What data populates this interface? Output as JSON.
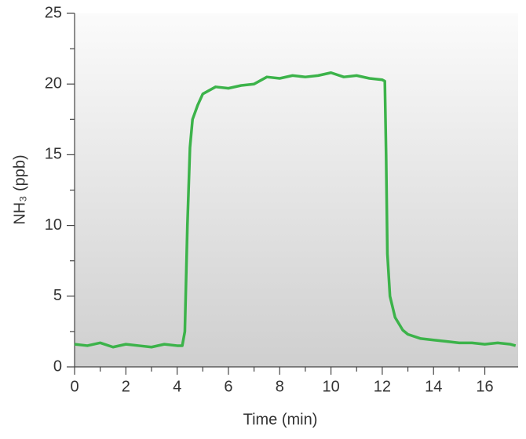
{
  "chart_data": {
    "type": "line",
    "xlabel": "Time (min)",
    "ylabel": "NH₃ (ppb)",
    "x": [
      0,
      0.5,
      1,
      1.5,
      2,
      2.5,
      3,
      3.5,
      4,
      4.2,
      4.3,
      4.4,
      4.5,
      4.6,
      4.8,
      5,
      5.5,
      6,
      6.5,
      7,
      7.5,
      8,
      8.5,
      9,
      9.5,
      10,
      10.5,
      11,
      11.5,
      12,
      12.1,
      12.15,
      12.2,
      12.3,
      12.5,
      12.8,
      13,
      13.5,
      14,
      14.5,
      15,
      15.5,
      16,
      16.5,
      17,
      17.2
    ],
    "series": [
      {
        "name": "NH₃",
        "color": "#3cb34a",
        "values": [
          1.6,
          1.5,
          1.7,
          1.4,
          1.6,
          1.5,
          1.4,
          1.6,
          1.5,
          1.5,
          2.5,
          10,
          15.5,
          17.5,
          18.5,
          19.3,
          19.8,
          19.7,
          19.9,
          20.0,
          20.5,
          20.4,
          20.6,
          20.5,
          20.6,
          20.8,
          20.5,
          20.6,
          20.4,
          20.3,
          20.2,
          15,
          8,
          5,
          3.5,
          2.6,
          2.3,
          2.0,
          1.9,
          1.8,
          1.7,
          1.7,
          1.6,
          1.7,
          1.6,
          1.5
        ]
      }
    ],
    "xlim": [
      0,
      17.3
    ],
    "ylim": [
      0,
      25
    ],
    "xticks": [
      0,
      2,
      4,
      6,
      8,
      10,
      12,
      14,
      16
    ],
    "yticks": [
      0,
      5,
      10,
      15,
      20,
      25
    ]
  }
}
